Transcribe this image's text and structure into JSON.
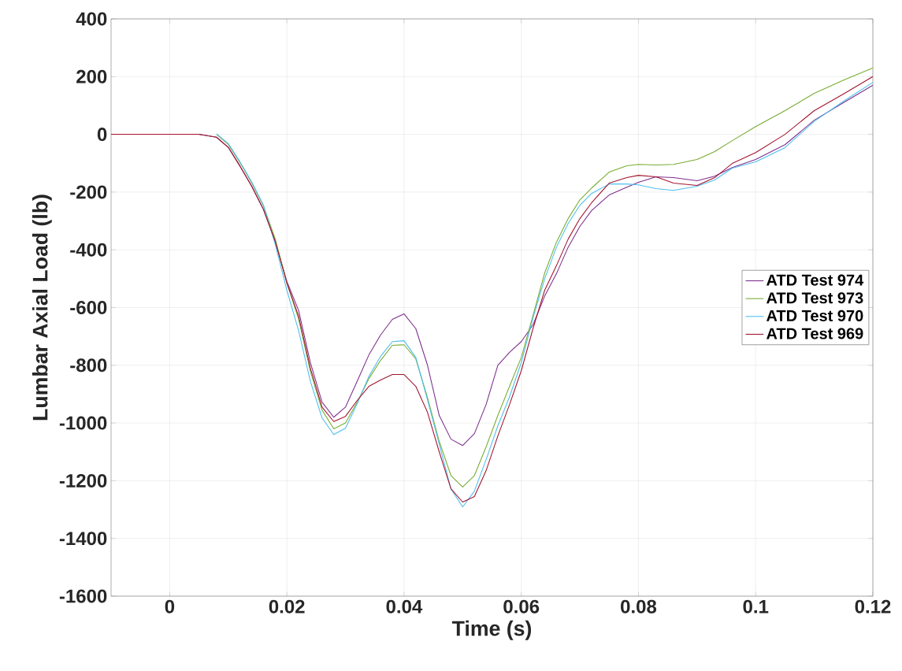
{
  "chart_data": {
    "type": "line",
    "xlabel": "Time (s)",
    "ylabel": "Lumbar Axial Load (lb)",
    "x": [
      -0.01,
      0,
      0.005,
      0.008,
      0.01,
      0.012,
      0.014,
      0.016,
      0.018,
      0.02,
      0.022,
      0.024,
      0.026,
      0.028,
      0.03,
      0.032,
      0.034,
      0.036,
      0.038,
      0.04,
      0.042,
      0.044,
      0.046,
      0.048,
      0.05,
      0.052,
      0.054,
      0.056,
      0.058,
      0.06,
      0.062,
      0.064,
      0.066,
      0.068,
      0.07,
      0.072,
      0.075,
      0.078,
      0.08,
      0.083,
      0.086,
      0.09,
      0.093,
      0.096,
      0.1,
      0.105,
      0.11,
      0.115,
      0.12
    ],
    "series": [
      {
        "name": "ATD Test 974",
        "color": "#7e2f8e",
        "values": [
          0,
          0,
          0,
          -10,
          -45,
          -110,
          -180,
          -260,
          -370,
          -510,
          -610,
          -790,
          -928,
          -980,
          -945,
          -855,
          -764,
          -695,
          -641,
          -622,
          -673,
          -800,
          -974,
          -1056,
          -1078,
          -1037,
          -936,
          -800,
          -755,
          -718,
          -660,
          -560,
          -483,
          -391,
          -319,
          -264,
          -210,
          -183,
          -166,
          -147,
          -150,
          -161,
          -145,
          -115,
          -87,
          -36,
          49,
          110,
          170
        ]
      },
      {
        "name": "ATD Test 973",
        "color": "#77ac30",
        "values": [
          null,
          null,
          null,
          0,
          -35,
          -98,
          -168,
          -248,
          -362,
          -515,
          -640,
          -820,
          -955,
          -1020,
          -1000,
          -928,
          -846,
          -783,
          -731,
          -729,
          -778,
          -912,
          -1064,
          -1182,
          -1222,
          -1182,
          -1083,
          -974,
          -873,
          -773,
          -628,
          -480,
          -374,
          -292,
          -227,
          -186,
          -131,
          -109,
          -104,
          -106,
          -104,
          -87,
          -60,
          -22,
          27,
          82,
          142,
          188,
          230
        ]
      },
      {
        "name": "ATD Test 970",
        "color": "#4dbeee",
        "values": [
          null,
          null,
          null,
          2,
          -32,
          -95,
          -165,
          -245,
          -380,
          -540,
          -680,
          -855,
          -982,
          -1040,
          -1018,
          -933,
          -838,
          -769,
          -718,
          -715,
          -773,
          -920,
          -1073,
          -1228,
          -1291,
          -1236,
          -1127,
          -1010,
          -909,
          -791,
          -636,
          -500,
          -391,
          -309,
          -246,
          -205,
          -172,
          -172,
          -175,
          -188,
          -194,
          -180,
          -158,
          -117,
          -95,
          -46,
          45,
          115,
          180
        ]
      },
      {
        "name": "ATD Test 969",
        "color": "#a2142f",
        "values": [
          0,
          0,
          0,
          -10,
          -45,
          -110,
          -180,
          -260,
          -370,
          -515,
          -630,
          -810,
          -945,
          -995,
          -977,
          -922,
          -873,
          -851,
          -832,
          -832,
          -873,
          -963,
          -1100,
          -1228,
          -1274,
          -1255,
          -1165,
          -1045,
          -936,
          -819,
          -673,
          -540,
          -455,
          -363,
          -292,
          -237,
          -169,
          -150,
          -142,
          -147,
          -169,
          -177,
          -150,
          -101,
          -63,
          0,
          82,
          140,
          200
        ]
      }
    ],
    "xlim": [
      -0.01,
      0.12
    ],
    "ylim": [
      -1600,
      400
    ],
    "xticks": [
      0,
      0.02,
      0.04,
      0.06,
      0.08,
      0.1,
      0.12
    ],
    "yticks": [
      -1600,
      -1400,
      -1200,
      -1000,
      -800,
      -600,
      -400,
      -200,
      0,
      200,
      400
    ],
    "grid": true,
    "legend": "right",
    "marker": "none",
    "line_style": "solid"
  }
}
